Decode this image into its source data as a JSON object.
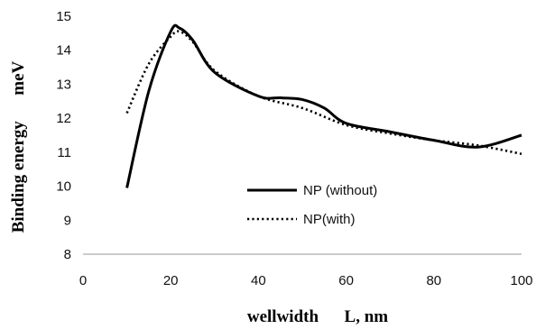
{
  "chart_data": {
    "type": "line",
    "xlabel": "wellwidth      L, nm",
    "ylabel": "Binding energy      meV",
    "xlim": [
      0,
      100
    ],
    "ylim": [
      8,
      15
    ],
    "x_ticks": [
      0,
      20,
      40,
      60,
      80,
      100
    ],
    "y_ticks": [
      8,
      9,
      10,
      11,
      12,
      13,
      14,
      15
    ],
    "x_tick_labels": [
      "0",
      "20",
      "40",
      "60",
      "80",
      "100"
    ],
    "y_tick_labels": [
      "8",
      "9",
      "10",
      "11",
      "12",
      "13",
      "14",
      "15"
    ],
    "grid": false,
    "legend_position": "center",
    "series": [
      {
        "name": "NP (without)",
        "style": "solid",
        "color": "#000000",
        "x": [
          10,
          15,
          20,
          22,
          25,
          30,
          40,
          45,
          50,
          55,
          60,
          70,
          80,
          90,
          100
        ],
        "y": [
          9.95,
          12.8,
          14.55,
          14.65,
          14.3,
          13.35,
          12.65,
          12.6,
          12.55,
          12.3,
          11.85,
          11.6,
          11.35,
          11.15,
          11.5
        ]
      },
      {
        "name": "NP(with)",
        "style": "dotted",
        "color": "#000000",
        "x": [
          10,
          15,
          20,
          22,
          25,
          30,
          40,
          50,
          60,
          70,
          80,
          90,
          100
        ],
        "y": [
          12.15,
          13.6,
          14.4,
          14.55,
          14.25,
          13.4,
          12.65,
          12.3,
          11.8,
          11.55,
          11.35,
          11.2,
          10.95
        ]
      }
    ]
  }
}
